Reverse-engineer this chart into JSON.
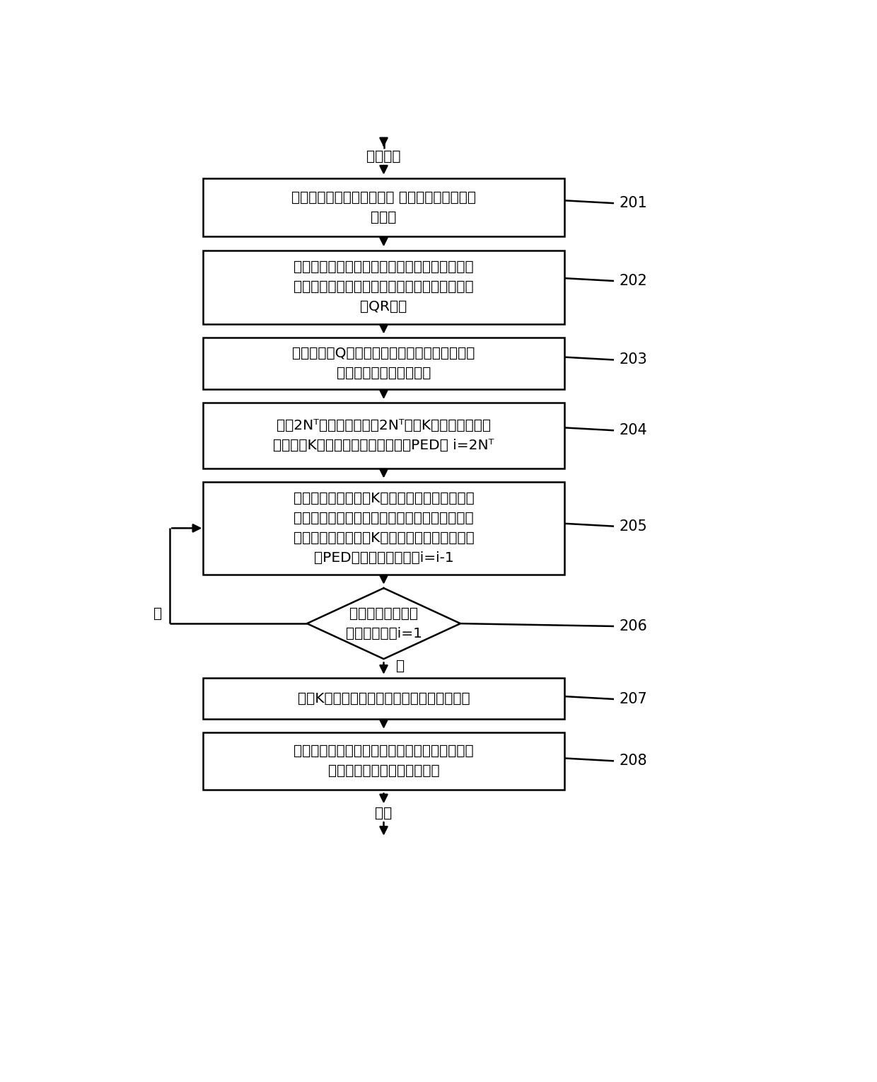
{
  "bg_color": "#ffffff",
  "box_color": "#ffffff",
  "box_edge_color": "#000000",
  "text_color": "#000000",
  "arrow_color": "#000000",
  "font_size": 14.5,
  "label_font_size": 15,
  "start_label": "参数输八",
  "end_label": "输出",
  "boxes": [
    {
      "id": "b1",
      "text": "对接收向量做平移与缩放，得到平移缩放后的接收向量",
      "text2": "对接收向量做平移与缩放， 得到平移缩放后的接\n收向量",
      "label": "201"
    },
    {
      "id": "b2",
      "text": "对信道矩阵，通过格基规约算法，获得正交性更好的信道矩阵以及变换矩阵，并对新的信道矩阵做QR分解",
      "text2": "对信道矩阵，通过格基规约算法，获得正交性更\n好的信道矩阵以及变换矩阵，并对新的信道矩阵\n做QR分解",
      "label": "202"
    },
    {
      "id": "b3",
      "text": "将所获得的Q矩阵的共轭转置与接收信号相乘，得到接收信号的均衡信号",
      "text2": "将所获得的Q矩阵的共轭转置与接收信号相乘，\n得到接收信号的均衡信号",
      "label": "203"
    },
    {
      "id": "b4",
      "text": "从第2Nᵀ层开始，找到第2Nᵀ层的K个最佳节点，并且计算这K个最佳的子节点所对应的PED， i=2Nᵀ",
      "text2": "从第2Nᵀ层开始，找到第2Nᵀ层的K个最佳节点，并\n且计算这K个最佳的子节点所对应的PED， i=2Nᵀ",
      "label": "204"
    },
    {
      "id": "b5",
      "text2": "基于上一步中获得的K个最佳节点，结合父节点\n扩展子节点的方法，利用候选最小堆排序算法选\n择出该层的上一层的K个最佳节点，并计算相应\n的PED，进入上一层，令i=i-1",
      "label": "205"
    },
    {
      "id": "b6",
      "text2": "选择K个节点中满足一定条件的一个节点输出",
      "label": "207"
    },
    {
      "id": "b7",
      "text2": "对该节点左乘变换矩阵后，通过越界控制，再进\n行平移与缩放，获得检测结果",
      "label": "208"
    }
  ],
  "diamond": {
    "id": "d1",
    "text2": "判定是否到达叶子\n节点，即是否i=1",
    "label": "206",
    "yes_label": "是",
    "no_label": "否"
  },
  "fig_width": 12.4,
  "fig_height": 15.29
}
